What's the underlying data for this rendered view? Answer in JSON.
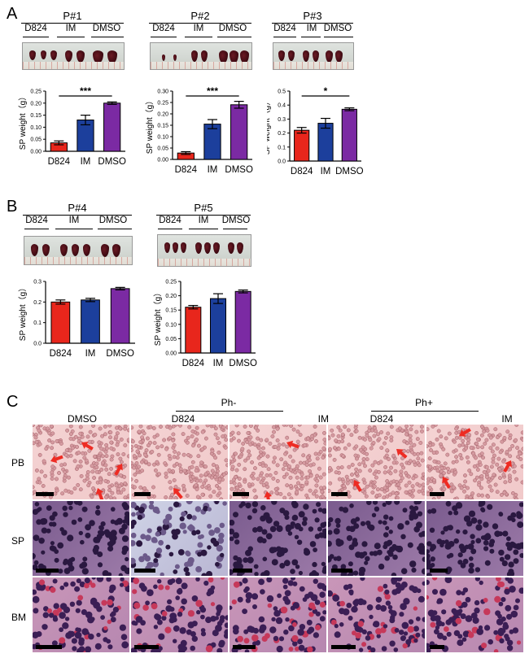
{
  "panels": {
    "A": "A",
    "B": "B",
    "C": "C"
  },
  "colors": {
    "d824": "#e8261c",
    "im": "#1c3f9c",
    "dmso": "#7b2aa3"
  },
  "groups": [
    "D824",
    "IM",
    "DMSO"
  ],
  "chart_data": [
    {
      "type": "bar",
      "title": "P#1",
      "categories": [
        "D824",
        "IM",
        "DMSO"
      ],
      "values": [
        0.035,
        0.13,
        0.2
      ],
      "errors": [
        0.008,
        0.02,
        0.005
      ],
      "ylabel": "SP weight（g）",
      "ylim": [
        0,
        0.25
      ],
      "yticks": [
        "0.00",
        "0.05",
        "0.10",
        "0.15",
        "0.20",
        "0.25"
      ],
      "significance": "***"
    },
    {
      "type": "bar",
      "title": "P#2",
      "categories": [
        "D824",
        "IM",
        "DMSO"
      ],
      "values": [
        0.028,
        0.155,
        0.24
      ],
      "errors": [
        0.006,
        0.02,
        0.015
      ],
      "ylabel": "SP weight（g）",
      "ylim": [
        0,
        0.3
      ],
      "yticks": [
        "0.00",
        "0.05",
        "0.10",
        "0.15",
        "0.20",
        "0.25",
        "0.30"
      ],
      "significance": "***"
    },
    {
      "type": "bar",
      "title": "P#3",
      "categories": [
        "D824",
        "IM",
        "DMSO"
      ],
      "values": [
        0.22,
        0.27,
        0.37
      ],
      "errors": [
        0.02,
        0.035,
        0.01
      ],
      "ylabel": "SP weight（g）",
      "ylim": [
        0,
        0.5
      ],
      "yticks": [
        "0.0",
        "0.1",
        "0.2",
        "0.3",
        "0.4",
        "0.5"
      ],
      "significance": "*"
    },
    {
      "type": "bar",
      "title": "P#4",
      "categories": [
        "D824",
        "IM",
        "DMSO"
      ],
      "values": [
        0.2,
        0.21,
        0.265
      ],
      "errors": [
        0.01,
        0.008,
        0.006
      ],
      "ylabel": "SP weight（g）",
      "ylim": [
        0,
        0.3
      ],
      "yticks": [
        "0.0",
        "0.1",
        "0.2",
        "0.3"
      ],
      "significance": ""
    },
    {
      "type": "bar",
      "title": "P#5",
      "categories": [
        "D824",
        "IM",
        "DMSO"
      ],
      "values": [
        0.16,
        0.19,
        0.215
      ],
      "errors": [
        0.006,
        0.017,
        0.005
      ],
      "ylabel": "SP weight（g）",
      "ylim": [
        0,
        0.25
      ],
      "yticks": [
        "0.00",
        "0.05",
        "0.10",
        "0.15",
        "0.20",
        "0.25"
      ],
      "significance": ""
    }
  ],
  "histology": {
    "columns": [
      "DMSO",
      "D824",
      "IM",
      "D824",
      "IM"
    ],
    "headers": [
      "Ph-",
      "Ph+"
    ],
    "rows": [
      "PB",
      "SP",
      "BM"
    ]
  }
}
